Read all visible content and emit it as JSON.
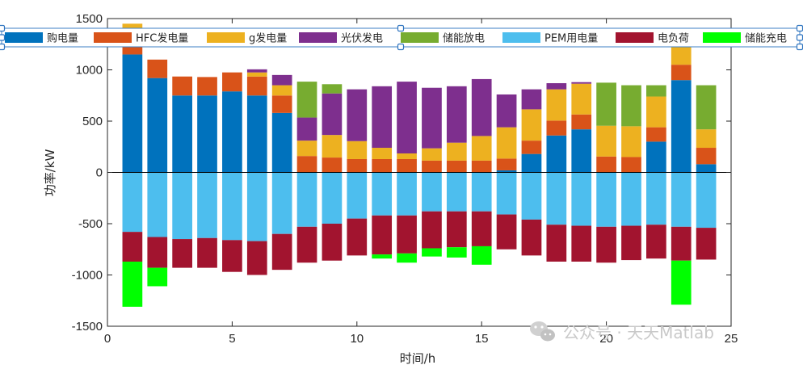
{
  "chart_data": {
    "type": "bar",
    "stacked": true,
    "xlabel": "时间/h",
    "ylabel": "功率/kW",
    "xlim": [
      0,
      25
    ],
    "ylim": [
      -1500,
      1500
    ],
    "xticks": [
      0,
      5,
      10,
      15,
      20,
      25
    ],
    "yticks": [
      -1500,
      -1000,
      -500,
      0,
      500,
      1000,
      1500
    ],
    "x": [
      1,
      2,
      3,
      4,
      5,
      6,
      7,
      8,
      9,
      10,
      11,
      12,
      13,
      14,
      15,
      16,
      17,
      18,
      19,
      20,
      21,
      22,
      23,
      24
    ],
    "colors": {
      "buy": "#0072BD",
      "hfc": "#D95319",
      "gas": "#EDB120",
      "pv": "#7E2F8E",
      "storage_discharge": "#77AC30",
      "pem": "#4DBEEE",
      "load": "#A2142F",
      "storage_charge": "#00FF00"
    },
    "series": [
      {
        "key": "buy",
        "name": "购电量",
        "sign": "positive",
        "values": [
          1150,
          920,
          750,
          750,
          790,
          750,
          580,
          0,
          0,
          0,
          0,
          0,
          0,
          0,
          0,
          20,
          180,
          360,
          420,
          0,
          0,
          300,
          900,
          80
        ]
      },
      {
        "key": "hfc",
        "name": "HFC发电量",
        "sign": "positive",
        "values": [
          200,
          180,
          185,
          180,
          185,
          185,
          170,
          160,
          145,
          130,
          130,
          130,
          115,
          115,
          115,
          115,
          130,
          145,
          145,
          155,
          150,
          140,
          150,
          160
        ]
      },
      {
        "key": "gas",
        "name": "g发电量",
        "sign": "positive",
        "values": [
          100,
          0,
          0,
          0,
          0,
          40,
          100,
          150,
          220,
          175,
          110,
          55,
          120,
          175,
          240,
          305,
          305,
          305,
          300,
          300,
          300,
          300,
          200,
          180
        ]
      },
      {
        "key": "pv",
        "name": "光伏发电",
        "sign": "positive",
        "values": [
          0,
          0,
          0,
          0,
          0,
          30,
          100,
          225,
          405,
          505,
          600,
          700,
          590,
          550,
          555,
          320,
          195,
          60,
          15,
          0,
          0,
          0,
          0,
          0
        ]
      },
      {
        "key": "storage_discharge",
        "name": "储能放电",
        "sign": "positive",
        "values": [
          0,
          0,
          0,
          0,
          0,
          0,
          0,
          350,
          90,
          0,
          0,
          0,
          0,
          0,
          0,
          0,
          0,
          0,
          0,
          420,
          400,
          110,
          0,
          430
        ]
      },
      {
        "key": "pem",
        "name": "PEM用电量",
        "sign": "negative",
        "values": [
          -580,
          -630,
          -650,
          -640,
          -660,
          -670,
          -600,
          -530,
          -500,
          -450,
          -420,
          -420,
          -380,
          -380,
          -380,
          -410,
          -460,
          -510,
          -520,
          -530,
          -520,
          -510,
          -530,
          -540
        ]
      },
      {
        "key": "load",
        "name": "电负荷",
        "sign": "negative",
        "values": [
          -290,
          -300,
          -280,
          -290,
          -310,
          -330,
          -350,
          -350,
          -360,
          -360,
          -380,
          -370,
          -360,
          -350,
          -340,
          -340,
          -350,
          -360,
          -350,
          -350,
          -335,
          -330,
          -330,
          -310
        ]
      },
      {
        "key": "storage_charge",
        "name": "储能充电",
        "sign": "negative",
        "values": [
          -440,
          -180,
          0,
          0,
          0,
          0,
          0,
          0,
          0,
          0,
          -40,
          -90,
          -80,
          -100,
          -180,
          0,
          0,
          0,
          0,
          0,
          0,
          0,
          -430,
          0
        ]
      }
    ]
  },
  "watermark": {
    "text": "公众号 · 天天Matlab"
  }
}
